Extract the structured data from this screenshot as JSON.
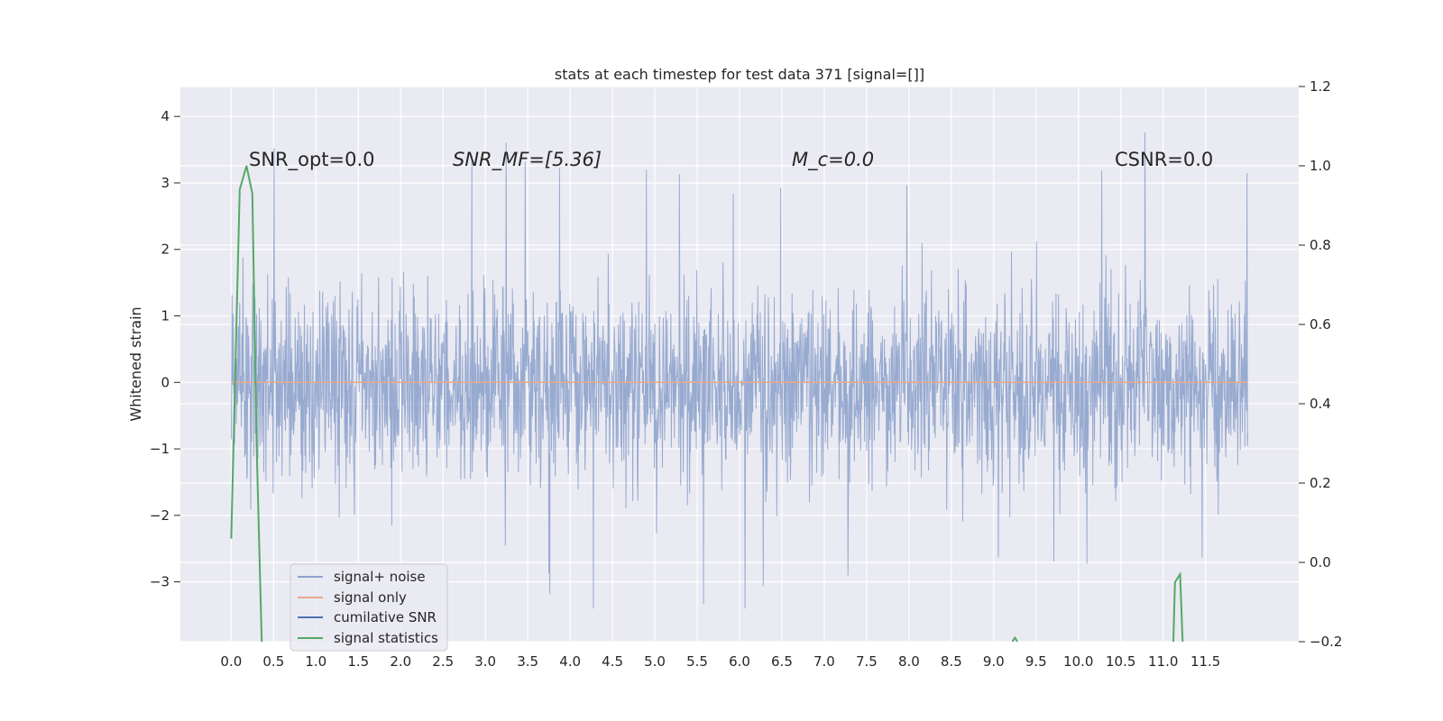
{
  "chart_data": {
    "type": "line",
    "title": "stats at each timestep for test data 371 [signal=[]]",
    "xlabel": "",
    "ylabel": "Whitened strain",
    "y2label": "",
    "xlim": [
      -0.6,
      12.6
    ],
    "ylim": [
      -3.9,
      4.45
    ],
    "y2lim": [
      -0.2,
      1.2
    ],
    "xticks": [
      "0.0",
      "0.5",
      "1.0",
      "1.5",
      "2.0",
      "2.5",
      "3.0",
      "3.5",
      "4.0",
      "4.5",
      "5.0",
      "5.5",
      "6.0",
      "6.5",
      "7.0",
      "7.5",
      "8.0",
      "8.5",
      "9.0",
      "9.5",
      "10.0",
      "10.5",
      "11.0",
      "11.5"
    ],
    "yticks": [
      "4",
      "3",
      "2",
      "1",
      "0",
      "−1",
      "−2",
      "−3"
    ],
    "y2ticks": [
      "1.2",
      "1.0",
      "0.8",
      "0.6",
      "0.4",
      "0.2",
      "0.0",
      "−0.2"
    ],
    "grid": true,
    "legend_placement": "lower-left",
    "annotations": [
      {
        "text": "SNR_opt=0.0",
        "x": 0.2
      },
      {
        "text": "SNR_MF=[5.36]",
        "x": 2.6
      },
      {
        "text": "M_c=0.0",
        "x": 6.6
      },
      {
        "text": "CSNR=0.0",
        "x": 10.4
      }
    ],
    "series": [
      {
        "name": "signal+ noise",
        "color": "#4c72b0",
        "axis": "left",
        "note": "dense whitened noise trace, roughly uniform band from about -2.0 to +2.5 with spikes to about -3.4 and +4.1",
        "x_range": [
          0.0,
          12.0
        ],
        "envelope": {
          "low": -1.6,
          "high": 1.6,
          "peak_high": 4.1,
          "peak_low": -3.4
        }
      },
      {
        "name": "signal only",
        "color": "#dd8452",
        "axis": "left",
        "x": [
          0.0,
          12.0
        ],
        "y": [
          0.0,
          0.0
        ]
      },
      {
        "name": "cumilative SNR",
        "color": "#4c72b0",
        "axis": "left",
        "x": [],
        "y": []
      },
      {
        "name": "signal statistics",
        "color": "#55a868",
        "axis": "right",
        "segments": [
          {
            "x": [
              0.0,
              0.1,
              0.18,
              0.25,
              0.3,
              0.36
            ],
            "y": [
              0.06,
              0.94,
              1.0,
              0.93,
              0.3,
              -0.2
            ]
          },
          {
            "x": [
              9.22,
              9.25,
              9.28
            ],
            "y": [
              -0.2,
              -0.19,
              -0.2
            ]
          },
          {
            "x": [
              11.12,
              11.14,
              11.2,
              11.23
            ],
            "y": [
              -0.2,
              -0.05,
              -0.03,
              -0.2
            ]
          }
        ]
      }
    ]
  },
  "legend": {
    "items": [
      {
        "label": "signal+ noise",
        "color": "#8ea3cc"
      },
      {
        "label": "signal only",
        "color": "#e8a98c"
      },
      {
        "label": "cumilative SNR",
        "color": "#4c72b0"
      },
      {
        "label": "signal statistics",
        "color": "#55a868"
      }
    ]
  }
}
